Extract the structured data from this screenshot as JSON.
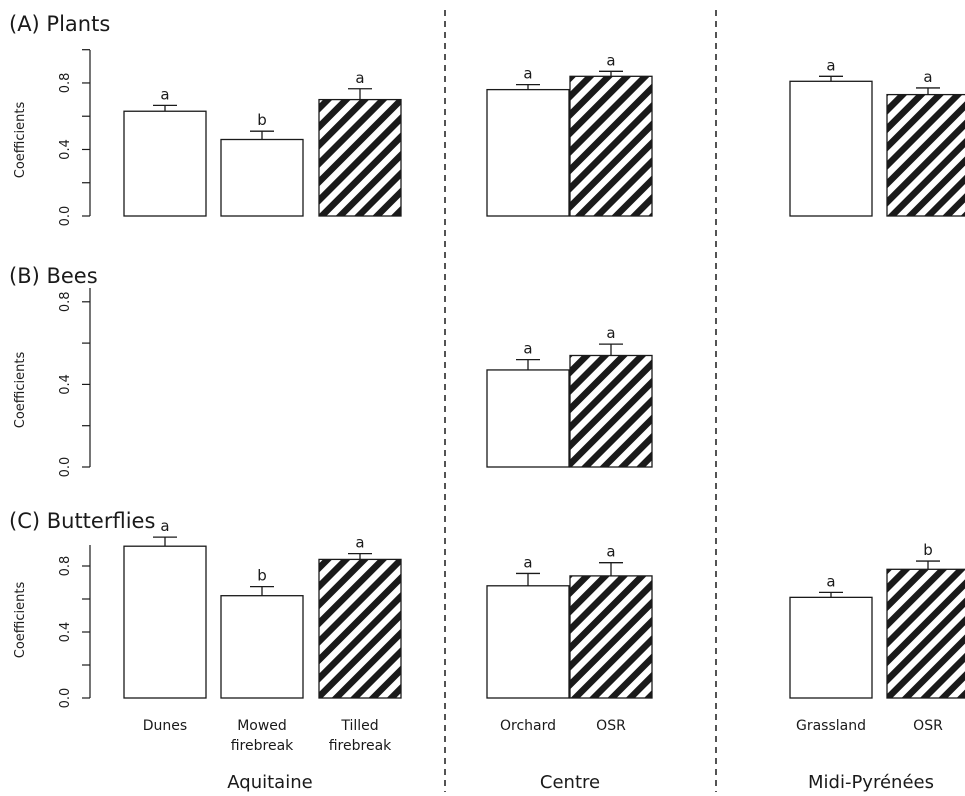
{
  "chart_data": {
    "type": "bar",
    "ylabel": "Coefficients",
    "regions": [
      "Aquitaine",
      "Centre",
      "Midi-Pyrénées"
    ],
    "category_labels": [
      [
        "Dunes"
      ],
      [
        "Mowed",
        "firebreak"
      ],
      [
        "Tilled",
        "firebreak"
      ],
      [
        "Orchard"
      ],
      [
        "OSR"
      ],
      [
        "Grassland"
      ],
      [
        "OSR"
      ]
    ],
    "bar_fill": [
      "plain",
      "plain",
      "hatched",
      "plain",
      "hatched",
      "plain",
      "hatched"
    ],
    "colors": {
      "axis": "#1a1a1a",
      "bar_fill": "#ffffff",
      "hatch": "#1a1a1a"
    },
    "grid": false,
    "panels": [
      {
        "title": "(A) Plants",
        "ylim": [
          0,
          1.0
        ],
        "yticks": [
          "0.0",
          "0.4",
          "0.8"
        ],
        "values": [
          0.63,
          0.46,
          0.7,
          0.76,
          0.84,
          0.81,
          0.73
        ],
        "errors": [
          0.035,
          0.05,
          0.065,
          0.03,
          0.03,
          0.03,
          0.04
        ],
        "letters": [
          "a",
          "b",
          "a",
          "a",
          "a",
          "a",
          "a"
        ]
      },
      {
        "title": "(B) Bees",
        "ylim": [
          0,
          0.9
        ],
        "yticks": [
          "0.0",
          "0.4",
          "0.8"
        ],
        "values": [
          null,
          null,
          null,
          0.47,
          0.54,
          null,
          null
        ],
        "errors": [
          null,
          null,
          null,
          0.05,
          0.055,
          null,
          null
        ],
        "letters": [
          null,
          null,
          null,
          "a",
          "a",
          null,
          null
        ]
      },
      {
        "title": "(C) Butterflies",
        "ylim": [
          0,
          1.0
        ],
        "yticks": [
          "0.0",
          "0.4",
          "0.8"
        ],
        "values": [
          0.92,
          0.62,
          0.84,
          0.68,
          0.74,
          0.61,
          0.78
        ],
        "errors": [
          0.055,
          0.055,
          0.035,
          0.075,
          0.08,
          0.03,
          0.05
        ],
        "letters": [
          "a",
          "b",
          "a",
          "a",
          "a",
          "a",
          "b"
        ]
      }
    ]
  }
}
